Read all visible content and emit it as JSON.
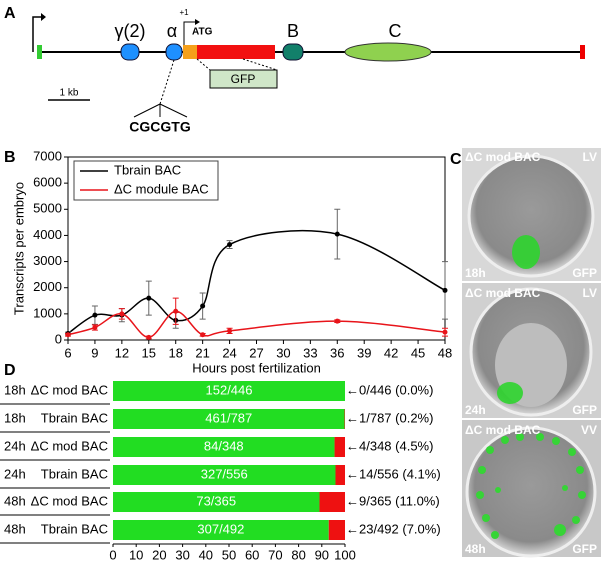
{
  "diagram": {
    "panel_label": "A",
    "tss": "+1",
    "atg": "ATG",
    "modules": [
      "γ(2)",
      "α",
      "B",
      "C"
    ],
    "gfp": "GFP",
    "scale": "1 kb",
    "motif": "CGCGTG"
  },
  "chart_data": [
    {
      "type": "line",
      "panel_label": "B",
      "x_label": "Hours post fertilization",
      "y_label": "Transcripts per embryo",
      "x": [
        6,
        9,
        12,
        15,
        18,
        21,
        24,
        36,
        48
      ],
      "xlim": [
        6,
        48
      ],
      "xticks": [
        6,
        9,
        12,
        15,
        18,
        21,
        24,
        27,
        30,
        33,
        36,
        39,
        42,
        45,
        48
      ],
      "ylim": [
        0,
        7000
      ],
      "yticks": [
        0,
        1000,
        2000,
        3000,
        4000,
        5000,
        6000,
        7000
      ],
      "legend": "upper left",
      "series": [
        {
          "name": "Tbrain BAC",
          "color": "#000000",
          "values": [
            250,
            950,
            950,
            1600,
            750,
            1300,
            3650,
            4050,
            1900
          ],
          "errors": [
            50,
            350,
            250,
            650,
            300,
            500,
            150,
            950,
            1100
          ]
        },
        {
          "name": "ΔC module BAC",
          "color": "#e8141a",
          "values": [
            200,
            480,
            1000,
            100,
            1100,
            200,
            350,
            720,
            300
          ],
          "errors": [
            50,
            100,
            200,
            50,
            500,
            50,
            100,
            50,
            150
          ]
        }
      ]
    },
    {
      "type": "bar",
      "orientation": "horizontal",
      "stacked": true,
      "panel_label": "D",
      "times": [
        "18h",
        "18h",
        "24h",
        "24h",
        "48h",
        "48h"
      ],
      "categories": [
        "ΔC mod BAC",
        "Tbrain BAC",
        "ΔC mod BAC",
        "Tbrain BAC",
        "ΔC mod BAC",
        "Tbrain BAC"
      ],
      "inside_labels": [
        "152/446",
        "461/787",
        "84/348",
        "327/556",
        "73/365",
        "307/492"
      ],
      "right_labels": [
        "←0/446 (0.0%)",
        "←1/787 (0.2%)",
        "←4/348 (4.5%)",
        "←14/556 (4.1%)",
        "←9/365 (11.0%)",
        "←23/492 (7.0%)"
      ],
      "xlim": [
        0,
        100
      ],
      "xticks": [
        0,
        10,
        20,
        30,
        40,
        50,
        60,
        70,
        80,
        90,
        100
      ],
      "series": [
        {
          "color": "#22dd22",
          "values": [
            100,
            99.8,
            95.5,
            95.9,
            89.0,
            93.0
          ]
        },
        {
          "color": "#ee1111",
          "values": [
            0,
            0.2,
            4.5,
            4.1,
            11.0,
            7.0
          ]
        }
      ]
    }
  ],
  "images": {
    "panel_label": "C",
    "panels": [
      {
        "construct": "ΔC mod BAC",
        "view": "LV",
        "time": "18h",
        "channel": "GFP"
      },
      {
        "construct": "ΔC mod BAC",
        "view": "LV",
        "time": "24h",
        "channel": "GFP"
      },
      {
        "construct": "ΔC mod BAC",
        "view": "VV",
        "time": "48h",
        "channel": "GFP"
      }
    ]
  }
}
